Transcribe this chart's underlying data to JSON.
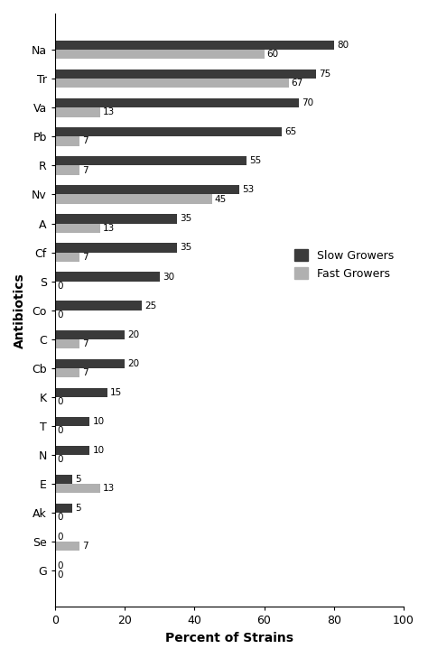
{
  "categories": [
    "Na",
    "Tr",
    "Va",
    "Pb",
    "R",
    "Nv",
    "A",
    "Cf",
    "S",
    "Co",
    "C",
    "Cb",
    "K",
    "T",
    "N",
    "E",
    "Ak",
    "Se",
    "G"
  ],
  "slow_growers": [
    80,
    75,
    70,
    65,
    55,
    53,
    35,
    35,
    30,
    25,
    20,
    20,
    15,
    10,
    10,
    5,
    5,
    0,
    0
  ],
  "fast_growers": [
    60,
    67,
    13,
    7,
    7,
    45,
    13,
    7,
    0,
    0,
    7,
    7,
    0,
    0,
    0,
    13,
    0,
    7,
    0
  ],
  "slow_color": "#3a3a3a",
  "fast_color": "#b0b0b0",
  "xlabel": "Percent of Strains",
  "ylabel": "Antibiotics",
  "xlim": [
    0,
    100
  ],
  "legend_slow": "Slow Growers",
  "legend_fast": "Fast Growers",
  "bar_height": 0.32,
  "figsize": [
    4.74,
    7.29
  ],
  "dpi": 100,
  "label_fontsize": 7.5,
  "axis_label_fontsize": 10,
  "tick_fontsize": 9,
  "legend_fontsize": 9
}
